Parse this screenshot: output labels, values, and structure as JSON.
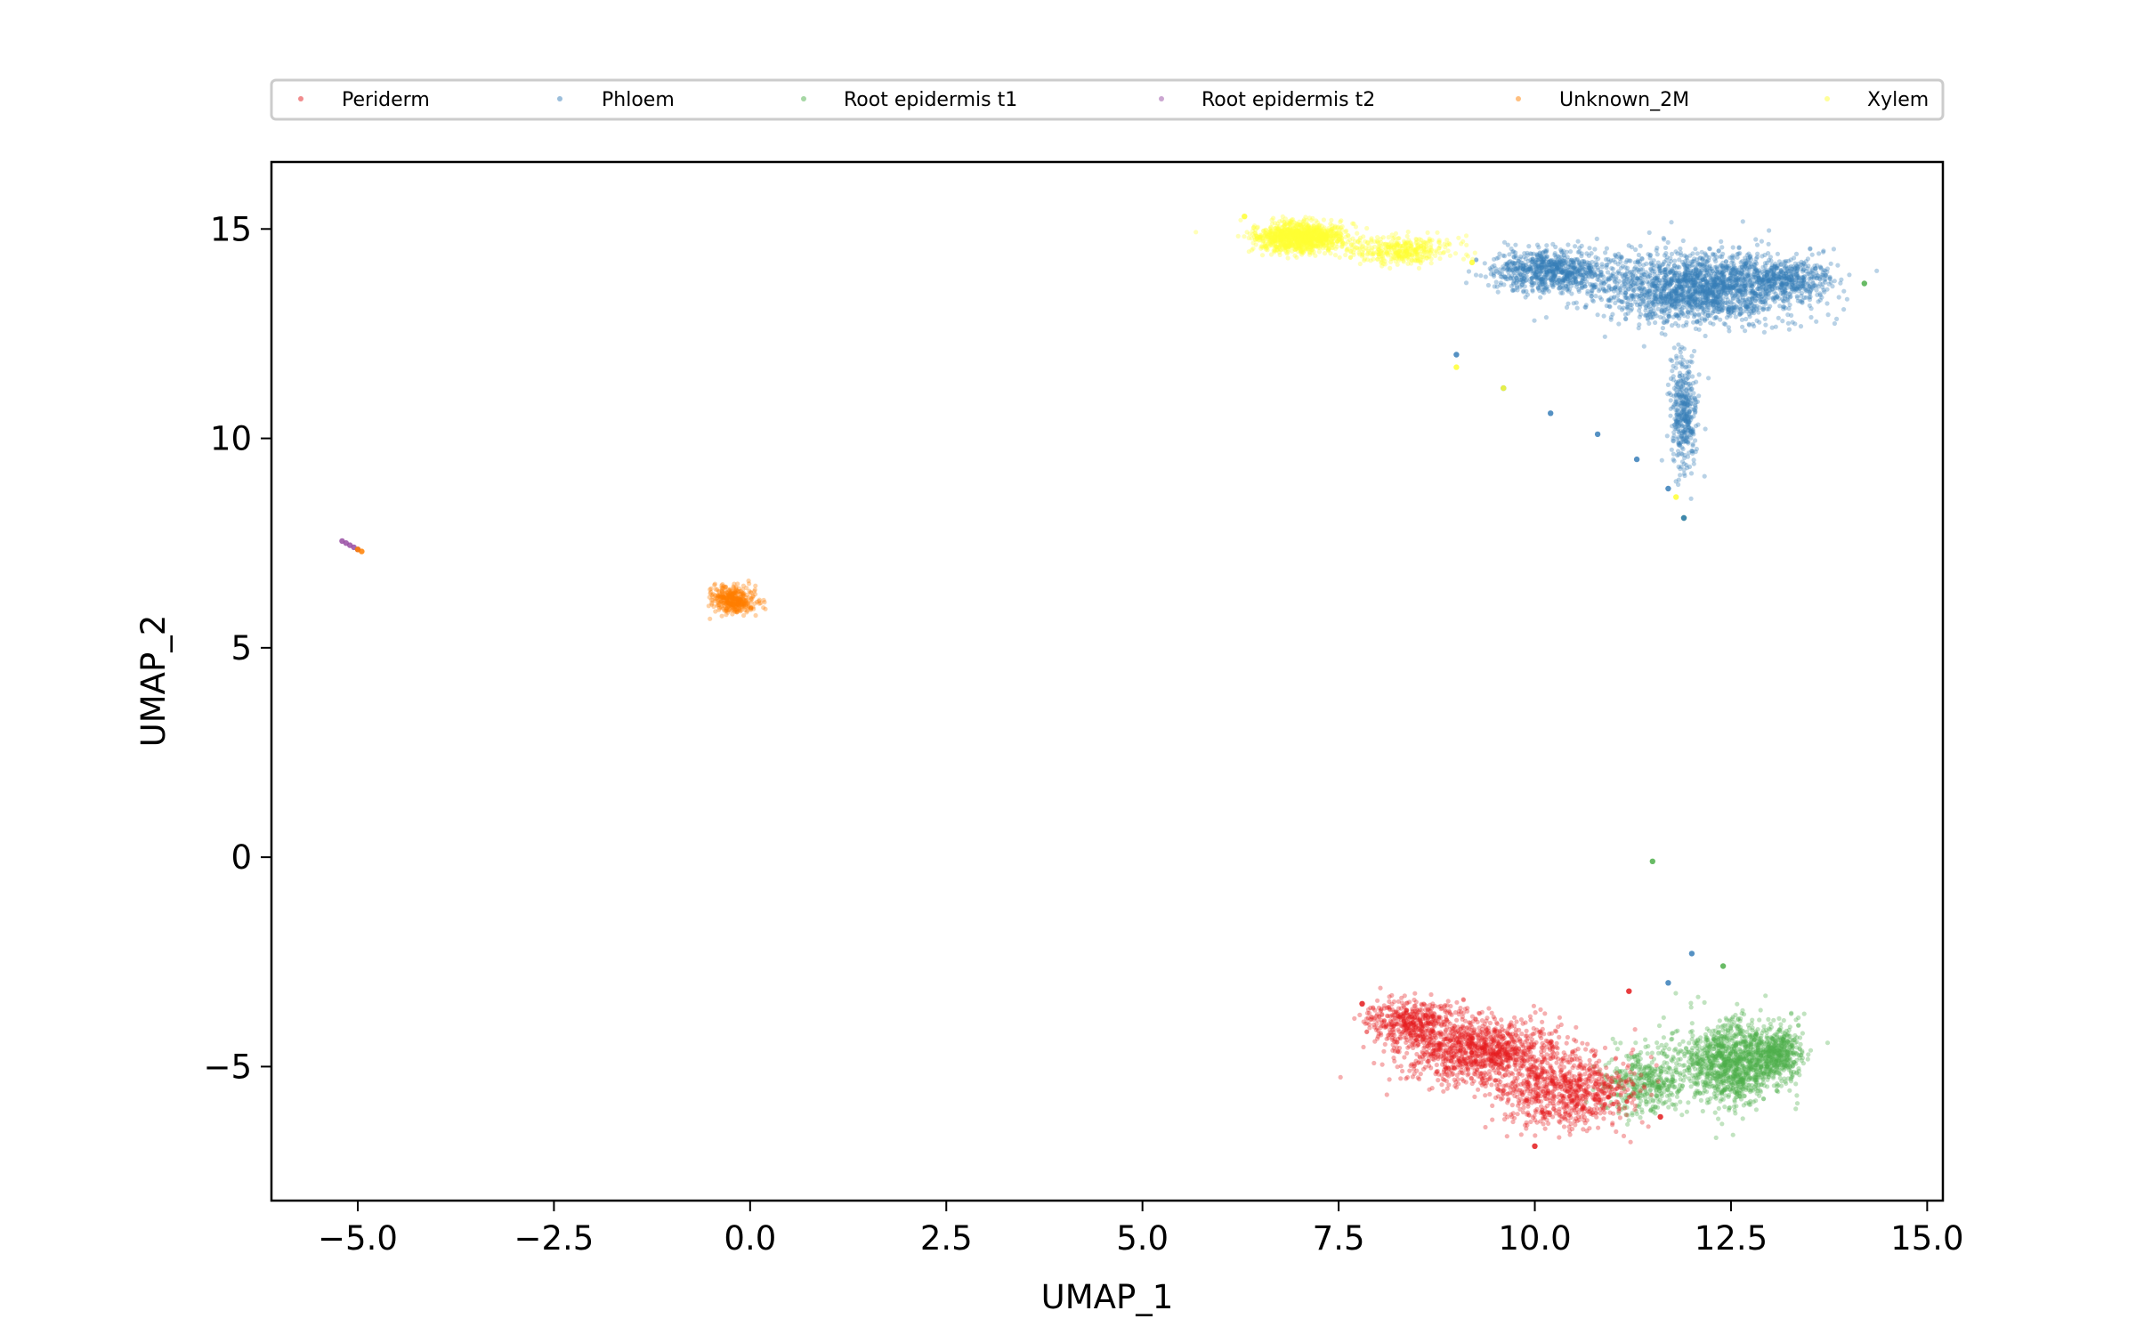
{
  "chart_data": {
    "type": "scatter",
    "title": "",
    "xlabel": "UMAP_1",
    "ylabel": "UMAP_2",
    "xlim": [
      -6.1,
      15.2
    ],
    "ylim": [
      -8.2,
      16.6
    ],
    "xticks": [
      -5.0,
      -2.5,
      0.0,
      2.5,
      5.0,
      7.5,
      10.0,
      12.5,
      15.0
    ],
    "xtick_labels": [
      "−5.0",
      "−2.5",
      "0.0",
      "2.5",
      "5.0",
      "7.5",
      "10.0",
      "12.5",
      "15.0"
    ],
    "yticks": [
      -5,
      0,
      5,
      10,
      15
    ],
    "ytick_labels": [
      "−5",
      "0",
      "5",
      "10",
      "15"
    ],
    "grid": false,
    "legend_position": "top",
    "series": [
      {
        "name": "Periderm",
        "color": "#e41a1c",
        "clusters": [
          {
            "center": [
              9.3,
              -4.6
            ],
            "spread": [
              0.95,
              0.7
            ],
            "weight": 3
          },
          {
            "center": [
              10.4,
              -5.6
            ],
            "spread": [
              0.8,
              0.75
            ],
            "weight": 2
          },
          {
            "center": [
              8.4,
              -3.9
            ],
            "spread": [
              0.5,
              0.45
            ],
            "weight": 1
          }
        ],
        "points": [
          [
            7.8,
            -3.5
          ],
          [
            11.2,
            -3.2
          ],
          [
            10.0,
            -6.9
          ],
          [
            11.6,
            -6.2
          ]
        ]
      },
      {
        "name": "Phloem",
        "color": "#377eb8",
        "clusters": [
          {
            "center": [
              12.1,
              13.6
            ],
            "spread": [
              1.15,
              0.75
            ],
            "weight": 5
          },
          {
            "center": [
              10.2,
              14.0
            ],
            "spread": [
              0.65,
              0.45
            ],
            "weight": 2
          },
          {
            "center": [
              13.2,
              13.8
            ],
            "spread": [
              0.55,
              0.45
            ],
            "weight": 1
          },
          {
            "center": [
              11.9,
              10.6
            ],
            "spread": [
              0.15,
              1.2
            ],
            "weight": 1
          }
        ],
        "points": [
          [
            9.0,
            12.0
          ],
          [
            9.6,
            11.2
          ],
          [
            10.2,
            10.6
          ],
          [
            10.8,
            10.1
          ],
          [
            11.3,
            9.5
          ],
          [
            11.7,
            8.8
          ],
          [
            11.9,
            8.1
          ],
          [
            12.0,
            -2.3
          ],
          [
            11.7,
            -3.0
          ]
        ]
      },
      {
        "name": "Root epidermis t1",
        "color": "#4daf4a",
        "clusters": [
          {
            "center": [
              12.5,
              -4.9
            ],
            "spread": [
              0.6,
              0.85
            ],
            "weight": 3
          },
          {
            "center": [
              11.4,
              -5.4
            ],
            "spread": [
              0.45,
              0.7
            ],
            "weight": 1
          },
          {
            "center": [
              13.1,
              -4.7
            ],
            "spread": [
              0.3,
              0.6
            ],
            "weight": 1
          }
        ],
        "points": [
          [
            11.5,
            -0.1
          ],
          [
            11.9,
            8.1
          ],
          [
            14.2,
            13.7
          ],
          [
            12.4,
            -2.6
          ]
        ]
      },
      {
        "name": "Root epidermis t2",
        "color": "#984ea3",
        "clusters": [],
        "points": [
          [
            -5.2,
            7.55
          ],
          [
            -5.15,
            7.5
          ],
          [
            -5.1,
            7.45
          ],
          [
            -5.05,
            7.4
          ],
          [
            -5.0,
            7.35
          ]
        ]
      },
      {
        "name": "Unknown_2M",
        "color": "#ff7f00",
        "clusters": [
          {
            "center": [
              -0.2,
              6.15
            ],
            "spread": [
              0.25,
              0.3
            ],
            "weight": 1
          }
        ],
        "points": [
          [
            -4.95,
            7.3
          ],
          [
            -5.0,
            7.35
          ]
        ]
      },
      {
        "name": "Xylem",
        "color": "#ffff33",
        "clusters": [
          {
            "center": [
              7.0,
              14.8
            ],
            "spread": [
              0.5,
              0.3
            ],
            "weight": 3
          },
          {
            "center": [
              8.3,
              14.5
            ],
            "spread": [
              0.6,
              0.3
            ],
            "weight": 1
          }
        ],
        "points": [
          [
            6.3,
            15.3
          ],
          [
            9.2,
            14.2
          ],
          [
            9.0,
            11.7
          ],
          [
            9.6,
            11.2
          ],
          [
            11.8,
            8.6
          ]
        ]
      }
    ]
  }
}
